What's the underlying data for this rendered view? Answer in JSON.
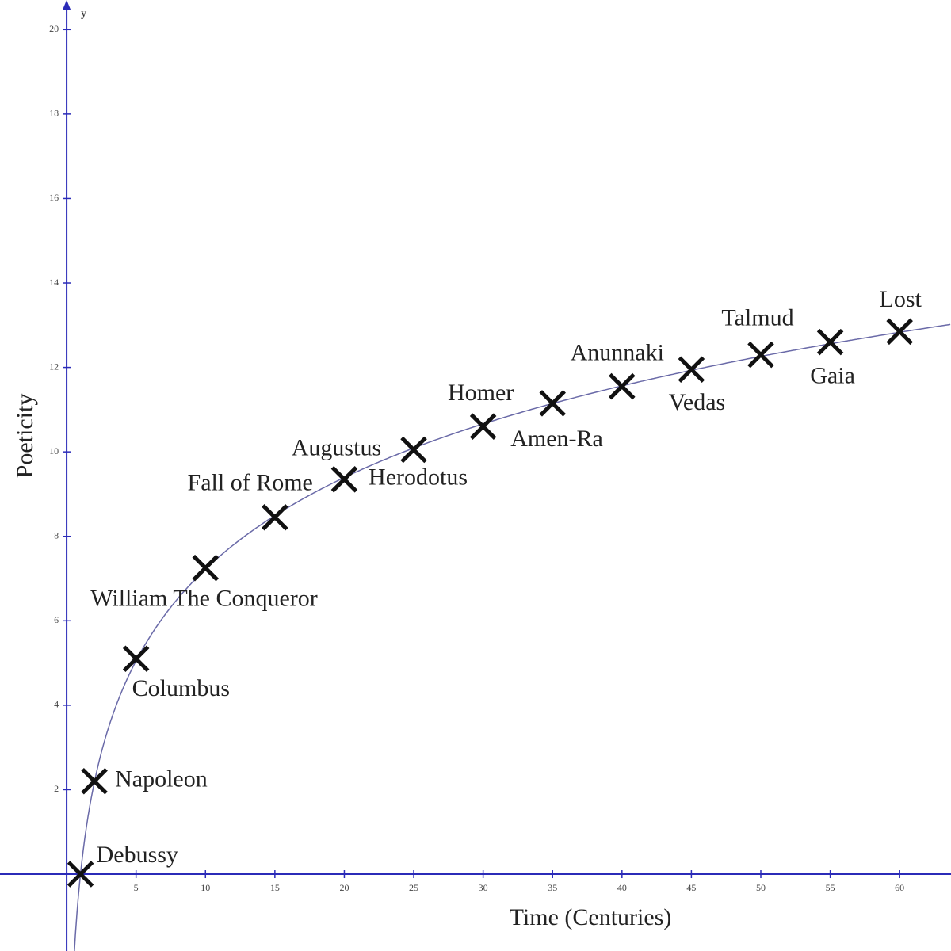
{
  "chart_data": {
    "type": "scatter",
    "x_label": "Time (Centuries)",
    "y_label": "Poeticity",
    "y_axis_name": "y",
    "x": [
      1,
      2,
      5,
      10,
      15,
      20,
      25,
      30,
      35,
      40,
      45,
      50,
      55,
      60
    ],
    "values": [
      0,
      2.2,
      5.1,
      7.25,
      8.45,
      9.35,
      10.05,
      10.6,
      11.15,
      11.55,
      11.95,
      12.3,
      12.6,
      12.85
    ],
    "labels": [
      "Debussy",
      "Napoleon",
      "Columbus",
      "William The Conqueror",
      "Fall of Rome",
      "Augustus",
      "Herodotus",
      "Homer",
      "Amen-Ra",
      "Anunnaki",
      "Vedas",
      "Talmud",
      "Gaia",
      "Lost"
    ],
    "color": "#111111",
    "axis_color": "#2b2bb8",
    "curve_color": "#6a6aa8",
    "xlim": [
      -4.8,
      63.7
    ],
    "ylim": [
      -1.82,
      20.7
    ],
    "xticks": [
      5,
      10,
      15,
      20,
      25,
      30,
      35,
      40,
      45,
      50,
      55,
      60
    ],
    "yticks": [
      2,
      4,
      6,
      8,
      10,
      12,
      14,
      16,
      18,
      20
    ]
  }
}
